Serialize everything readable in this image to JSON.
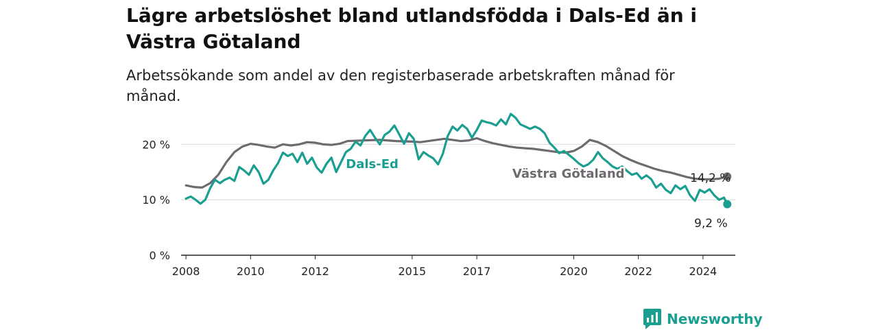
{
  "title": "Lägre arbetslöshet bland utlandsfödda i Dals-Ed än i Västra Götaland",
  "subtitle": "Arbetssökande som andel av den registerbaserade arbetskraften månad för månad.",
  "brand": "Newsworthy",
  "colors": {
    "dals_ed": "#1a9e8f",
    "vastra_gotaland": "#6e6a70",
    "grid": "#d9d9d9",
    "axis": "#222222"
  },
  "chart_data": {
    "type": "line",
    "title": "",
    "xlabel": "",
    "ylabel": "",
    "xlim": [
      2007.85,
      2025.0
    ],
    "ylim": [
      0,
      25
    ],
    "grid": true,
    "legend": "inline labels",
    "x_ticks": [
      {
        "value": 2008,
        "label": "2008"
      },
      {
        "value": 2010,
        "label": "2010"
      },
      {
        "value": 2012,
        "label": "2012"
      },
      {
        "value": 2015,
        "label": "2015"
      },
      {
        "value": 2017,
        "label": "2017"
      },
      {
        "value": 2020,
        "label": "2020"
      },
      {
        "value": 2022,
        "label": "2022"
      },
      {
        "value": 2024,
        "label": "2024"
      }
    ],
    "y_ticks": [
      {
        "value": 0,
        "label": "0 %"
      },
      {
        "value": 10,
        "label": "10 %"
      },
      {
        "value": 20,
        "label": "20 %"
      }
    ],
    "series": [
      {
        "name": "Västra Götaland",
        "color": "#6e6a70",
        "end_label": "14,2 %",
        "x": [
          2008.0,
          2008.25,
          2008.5,
          2008.75,
          2009.0,
          2009.25,
          2009.5,
          2009.75,
          2010.0,
          2010.25,
          2010.5,
          2010.75,
          2011.0,
          2011.25,
          2011.5,
          2011.75,
          2012.0,
          2012.25,
          2012.5,
          2012.75,
          2013.0,
          2013.5,
          2014.0,
          2014.5,
          2015.0,
          2015.25,
          2015.5,
          2015.75,
          2016.0,
          2016.25,
          2016.5,
          2016.75,
          2017.0,
          2017.25,
          2017.5,
          2017.75,
          2018.0,
          2018.25,
          2018.5,
          2018.75,
          2019.0,
          2019.25,
          2019.5,
          2019.75,
          2020.0,
          2020.25,
          2020.5,
          2020.75,
          2021.0,
          2021.25,
          2021.5,
          2021.75,
          2022.0,
          2022.25,
          2022.5,
          2022.75,
          2023.0,
          2023.25,
          2023.5,
          2023.75,
          2024.0,
          2024.25,
          2024.5,
          2024.75
        ],
        "values": [
          12.6,
          12.3,
          12.2,
          13.0,
          14.5,
          16.8,
          18.6,
          19.6,
          20.1,
          19.9,
          19.6,
          19.4,
          20.0,
          19.8,
          20.0,
          20.4,
          20.3,
          20.0,
          19.9,
          20.1,
          20.6,
          20.7,
          20.8,
          20.6,
          20.5,
          20.4,
          20.6,
          20.8,
          21.0,
          20.8,
          20.6,
          20.7,
          21.1,
          20.6,
          20.2,
          19.9,
          19.6,
          19.4,
          19.3,
          19.2,
          19.0,
          18.8,
          18.6,
          18.5,
          18.8,
          19.6,
          20.8,
          20.4,
          19.7,
          18.8,
          17.9,
          17.2,
          16.6,
          16.1,
          15.6,
          15.2,
          14.9,
          14.5,
          14.1,
          13.8,
          13.7,
          13.7,
          13.8,
          14.2
        ]
      },
      {
        "name": "Dals-Ed",
        "color": "#1a9e8f",
        "end_label": "9,2 %",
        "x": [
          2008.0,
          2008.15,
          2008.3,
          2008.45,
          2008.6,
          2008.75,
          2008.9,
          2009.05,
          2009.2,
          2009.35,
          2009.5,
          2009.65,
          2009.8,
          2009.95,
          2010.1,
          2010.25,
          2010.4,
          2010.55,
          2010.7,
          2010.85,
          2011.0,
          2011.15,
          2011.3,
          2011.45,
          2011.6,
          2011.75,
          2011.9,
          2012.05,
          2012.2,
          2012.35,
          2012.5,
          2012.65,
          2012.8,
          2012.95,
          2013.1,
          2013.25,
          2013.4,
          2013.55,
          2013.7,
          2013.85,
          2014.0,
          2014.15,
          2014.3,
          2014.45,
          2014.6,
          2014.75,
          2014.9,
          2015.05,
          2015.2,
          2015.35,
          2015.5,
          2015.65,
          2015.8,
          2015.95,
          2016.1,
          2016.25,
          2016.4,
          2016.55,
          2016.7,
          2016.85,
          2017.0,
          2017.15,
          2017.3,
          2017.45,
          2017.6,
          2017.75,
          2017.9,
          2018.05,
          2018.2,
          2018.35,
          2018.5,
          2018.65,
          2018.8,
          2018.95,
          2019.1,
          2019.25,
          2019.4,
          2019.55,
          2019.7,
          2019.85,
          2020.0,
          2020.15,
          2020.3,
          2020.45,
          2020.6,
          2020.75,
          2020.9,
          2021.05,
          2021.2,
          2021.35,
          2021.5,
          2021.65,
          2021.8,
          2021.95,
          2022.1,
          2022.25,
          2022.4,
          2022.55,
          2022.7,
          2022.85,
          2023.0,
          2023.15,
          2023.3,
          2023.45,
          2023.6,
          2023.75,
          2023.9,
          2024.05,
          2024.2,
          2024.35,
          2024.5,
          2024.65,
          2024.75
        ],
        "values": [
          10.2,
          10.6,
          10.0,
          9.3,
          10.0,
          12.1,
          13.6,
          13.0,
          13.6,
          14.0,
          13.4,
          15.9,
          15.3,
          14.5,
          16.2,
          15.0,
          12.9,
          13.6,
          15.3,
          16.6,
          18.5,
          17.9,
          18.3,
          16.8,
          18.5,
          16.5,
          17.6,
          15.8,
          14.9,
          16.5,
          17.6,
          15.0,
          16.8,
          18.6,
          19.2,
          20.5,
          19.8,
          21.5,
          22.6,
          21.2,
          20.0,
          21.7,
          22.3,
          23.4,
          21.8,
          20.1,
          22.0,
          21.0,
          17.3,
          18.6,
          18.0,
          17.5,
          16.4,
          18.3,
          21.5,
          23.2,
          22.5,
          23.5,
          22.8,
          21.2,
          22.6,
          24.3,
          24.0,
          23.8,
          23.4,
          24.5,
          23.6,
          25.5,
          24.8,
          23.6,
          23.2,
          22.8,
          23.2,
          22.8,
          22.0,
          20.3,
          19.4,
          18.4,
          18.8,
          18.1,
          17.4,
          16.6,
          16.0,
          16.4,
          17.2,
          18.6,
          17.5,
          16.8,
          16.0,
          15.6,
          16.0,
          15.2,
          14.5,
          14.8,
          13.8,
          14.4,
          13.7,
          12.2,
          12.9,
          11.8,
          11.2,
          12.6,
          11.9,
          12.5,
          10.8,
          9.8,
          11.8,
          11.3,
          11.9,
          10.8,
          10.0,
          10.4,
          9.2
        ]
      }
    ]
  }
}
